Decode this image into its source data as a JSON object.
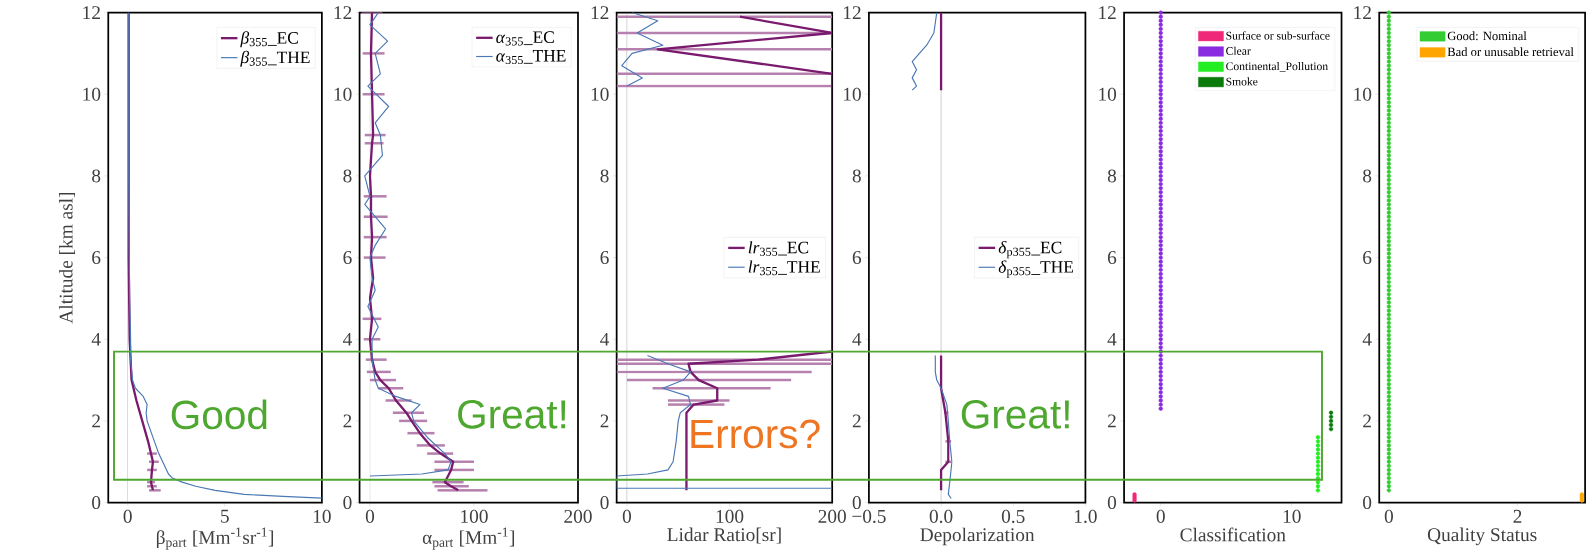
{
  "chart_data": [
    {
      "type": "line",
      "xlabel": "β$_{part}$ [Mm$^{-1}$sr$^{-1}$]",
      "ylabel": "Altitude [km asl]",
      "xlim": [
        -1,
        10
      ],
      "ylim": [
        0,
        12
      ],
      "xticks": [
        0,
        5,
        10
      ],
      "yticks": [
        0,
        2,
        4,
        6,
        8,
        10,
        12
      ],
      "legend": "top right",
      "ref_lines": [
        {
          "axis": "x",
          "value": 0,
          "color": "#999999"
        }
      ],
      "annotations": [
        "Good"
      ],
      "series": [
        {
          "name": "*β*$_{355}$_EC",
          "color": "#7a1a6e",
          "values": [
            12,
            10,
            8,
            6,
            4,
            3.5,
            3,
            2.5,
            2,
            1.5,
            1.2,
            1,
            0.8,
            0.5,
            0.4,
            0.3
          ],
          "x": [
            0.05,
            0.05,
            0.05,
            0.05,
            0.1,
            0.15,
            0.2,
            0.45,
            0.75,
            1.05,
            1.2,
            1.3,
            1.25,
            1.2,
            1.25,
            1.3
          ],
          "xerrors": [
            null,
            null,
            null,
            null,
            null,
            null,
            null,
            null,
            null,
            null,
            [
              1.0,
              1.5
            ],
            [
              1.1,
              1.6
            ],
            [
              1.0,
              1.5
            ],
            [
              1.0,
              1.4
            ],
            [
              1.0,
              1.5
            ],
            [
              1.1,
              1.7
            ]
          ]
        },
        {
          "name": "*β*$_{355}$_THE",
          "color": "#4a78b5",
          "values": [
            12,
            8,
            5,
            4,
            3.5,
            3,
            2.8,
            2.6,
            2.4,
            2.2,
            2,
            1.6,
            1.2,
            0.9,
            0.7,
            0.6,
            0.5,
            0.4,
            0.3,
            0.2,
            0.15,
            0.11
          ],
          "x": [
            0.05,
            0.05,
            0.1,
            0.15,
            0.15,
            0.25,
            0.4,
            0.8,
            1.0,
            0.95,
            1.0,
            1.3,
            1.6,
            1.9,
            2.1,
            2.3,
            2.8,
            3.5,
            4.5,
            6,
            8,
            10
          ]
        }
      ]
    },
    {
      "type": "line",
      "xlabel": "α$_{part}$ [Mm$^{-1}$]",
      "xlim": [
        -10,
        200
      ],
      "ylim": [
        0,
        12
      ],
      "xticks": [
        0,
        100,
        200
      ],
      "yticks": [
        0,
        2,
        4,
        6,
        8,
        10,
        12
      ],
      "legend": "top right",
      "ref_lines": [
        {
          "axis": "x",
          "value": 0,
          "color": "#999999"
        }
      ],
      "annotations": [
        "Great!"
      ],
      "series": [
        {
          "name": "*α*$_{355}$_EC",
          "color": "#7a1a6e",
          "values": [
            12,
            11,
            10,
            9,
            8.8,
            8,
            7.5,
            7,
            6.5,
            6,
            5.5,
            5,
            4.5,
            4,
            3.5,
            3.2,
            3,
            2.8,
            2.5,
            2.2,
            2,
            1.7,
            1.4,
            1.2,
            1,
            0.8,
            0.5,
            0.4,
            0.3
          ],
          "x": [
            2,
            1,
            2,
            3,
            2,
            0,
            1,
            1,
            2,
            1,
            3,
            0,
            2,
            0,
            2,
            5,
            10,
            18,
            25,
            35,
            40,
            48,
            58,
            68,
            80,
            78,
            72,
            78,
            85
          ],
          "xerrors": [
            [
              -8,
              12
            ],
            [
              -7,
              14
            ],
            [
              -7,
              14
            ],
            [
              -5,
              15
            ],
            [
              -5,
              13
            ],
            null,
            [
              -6,
              16
            ],
            [
              -6,
              17
            ],
            [
              -6,
              16
            ],
            [
              -6,
              15
            ],
            null,
            null,
            [
              -7,
              11
            ],
            [
              -6,
              10
            ],
            [
              -4,
              16
            ],
            [
              -3,
              20
            ],
            [
              0,
              25
            ],
            [
              8,
              32
            ],
            [
              15,
              40
            ],
            [
              22,
              52
            ],
            [
              28,
              55
            ],
            [
              36,
              62
            ],
            [
              45,
              72
            ],
            [
              55,
              80
            ],
            [
              62,
              100
            ],
            [
              62,
              100
            ],
            [
              60,
              90
            ],
            [
              62,
              95
            ],
            [
              65,
              113
            ]
          ]
        },
        {
          "name": "*α*$_{355}$_THE",
          "color": "#4a78b5",
          "values": [
            12,
            11.7,
            11.3,
            11,
            10.5,
            10.2,
            9.7,
            9.3,
            9,
            8.5,
            8,
            7.5,
            7.3,
            7,
            6.7,
            6.3,
            6,
            5.5,
            5.2,
            4.8,
            4.3,
            4,
            3.5,
            3,
            2.8,
            2.6,
            2.4,
            2.2,
            2,
            1.6,
            1.2,
            1,
            0.8,
            0.7,
            0.65
          ],
          "x": [
            8,
            0,
            17,
            5,
            10,
            -2,
            18,
            5,
            10,
            12,
            -5,
            0,
            -5,
            5,
            15,
            5,
            0,
            2,
            5,
            -2,
            8,
            2,
            2,
            5,
            8,
            25,
            48,
            40,
            42,
            55,
            72,
            78,
            75,
            50,
            0
          ]
        }
      ]
    },
    {
      "type": "line",
      "xlabel": "Lidar Ratio[sr]",
      "xlim": [
        -10,
        200
      ],
      "ylim": [
        0,
        12
      ],
      "xticks": [
        0,
        100,
        200
      ],
      "yticks": [
        0,
        2,
        4,
        6,
        8,
        10,
        12
      ],
      "legend": "right",
      "ref_lines": [
        {
          "axis": "x",
          "value": 0,
          "color": "#999999"
        }
      ],
      "annotations": [
        "Errors?"
      ],
      "series": [
        {
          "name": "*lr*$_{355}$_EC",
          "color": "#7a1a6e",
          "values": [
            11.9,
            11.5,
            11.1,
            10.5,
            10.2,
            6,
            3.7,
            3.5,
            3.4,
            3.2,
            3,
            2.8,
            2.5,
            2.4,
            2.2,
            1,
            0.3
          ],
          "x": [
            110,
            200,
            30,
            200,
            200,
            200,
            200,
            128,
            60,
            62,
            70,
            88,
            88,
            65,
            58,
            58,
            58
          ],
          "xerrors": [
            [
              -10,
              200
            ],
            [
              -10,
              200
            ],
            [
              -10,
              200
            ],
            [
              -10,
              200
            ],
            [
              -10,
              200
            ],
            null,
            null,
            [
              -10,
              200
            ],
            [
              -10,
              200
            ],
            [
              -10,
              180
            ],
            [
              0,
              160
            ],
            [
              25,
              140
            ],
            [
              40,
              100
            ],
            [
              40,
              95
            ],
            null,
            null,
            null
          ]
        },
        {
          "name": "*lr*$_{355}$_THE",
          "color": "#4a78b5",
          "values": [
            12,
            11.8,
            11.5,
            11.2,
            11,
            10.7,
            10.4,
            10.2,
            null,
            3.6,
            3.4,
            3.2,
            3,
            2.8,
            2.6,
            2.4,
            2.2,
            2,
            1.5,
            1,
            0.8,
            0.7,
            0.65,
            0.35,
            0.35
          ],
          "x": [
            5,
            30,
            10,
            35,
            5,
            -5,
            15,
            0,
            null,
            20,
            40,
            62,
            55,
            35,
            60,
            62,
            52,
            50,
            48,
            45,
            40,
            20,
            -10,
            -10,
            200
          ]
        }
      ]
    },
    {
      "type": "line",
      "xlabel": "Depolarization",
      "xlim": [
        -0.5,
        1.0
      ],
      "ylim": [
        0,
        12
      ],
      "xticks": [
        {
          "value": -0.5,
          "label": "−0.5"
        },
        {
          "value": 0,
          "label": "0.0"
        },
        0.5,
        {
          "value": 1.0,
          "label": "1.0"
        }
      ],
      "yticks": [
        0,
        2,
        4,
        6,
        8,
        10,
        12
      ],
      "legend": "right",
      "ref_lines": [
        {
          "axis": "x",
          "value": 0,
          "color": "#999999"
        }
      ],
      "annotations": [
        "Great!"
      ],
      "series": [
        {
          "name": "*δ*$_{p355}$_EC",
          "color": "#7a1a6e",
          "values": [
            12,
            10.1,
            null,
            3.6,
            2.8,
            2.2,
            1.5,
            1,
            0.8,
            0.3
          ],
          "x": [
            0,
            0,
            null,
            0,
            0,
            0.03,
            0.05,
            0.05,
            0,
            0
          ],
          "xerrors": [
            null,
            null,
            null,
            null,
            null,
            [
              0.02,
              0.05
            ],
            [
              0.03,
              0.07
            ],
            [
              0.03,
              0.07
            ],
            null,
            null
          ]
        },
        {
          "name": "*δ*$_{p355}$_THE",
          "color": "#4a78b5",
          "values": [
            12,
            11.5,
            11.2,
            11,
            10.8,
            10.6,
            10.4,
            10.2,
            10.1,
            null,
            3.6,
            3.2,
            3,
            2.8,
            2.4,
            2,
            1.5,
            1,
            0.5,
            0.2,
            0.1
          ],
          "x": [
            -0.03,
            -0.05,
            -0.1,
            -0.15,
            -0.2,
            -0.17,
            -0.2,
            -0.17,
            -0.2,
            null,
            -0.04,
            -0.04,
            -0.03,
            0,
            0.04,
            0.05,
            0.06,
            0.075,
            0.06,
            0.05,
            0.07
          ]
        }
      ]
    },
    {
      "type": "scatter",
      "xlabel": "Classification",
      "xlim": [
        -2.8,
        13.8
      ],
      "ylim": [
        0,
        12
      ],
      "xticks": [
        0,
        10
      ],
      "yticks": [
        0,
        2,
        4,
        6,
        8,
        10,
        12
      ],
      "legend": "top right",
      "marker": "circle",
      "series": [
        {
          "name": "Surface or sub-surface",
          "color": "#f0287a",
          "values": [
            0.05,
            0.1,
            0.15,
            0.2
          ],
          "x": [
            -2,
            -2,
            -2,
            -2
          ]
        },
        {
          "name": "Clear",
          "color": "#8a2be2",
          "values": [
            2.3,
            2.4,
            2.5,
            2.6,
            2.7,
            2.8,
            2.9,
            3.0,
            3.1,
            3.2,
            3.3,
            3.4,
            3.5,
            3.6,
            3.7,
            3.8,
            3.9,
            4.0,
            4.1,
            4.2,
            4.3,
            4.4,
            4.5,
            4.6,
            4.7,
            4.8,
            4.9,
            5.0,
            5.1,
            5.2,
            5.3,
            5.4,
            5.5,
            5.6,
            5.7,
            5.8,
            5.9,
            6.0,
            6.1,
            6.2,
            6.3,
            6.4,
            6.5,
            6.6,
            6.7,
            6.8,
            6.9,
            7.0,
            7.1,
            7.2,
            7.3,
            7.4,
            7.5,
            7.6,
            7.7,
            7.8,
            7.9,
            8.0,
            8.1,
            8.2,
            8.3,
            8.4,
            8.5,
            8.6,
            8.7,
            8.8,
            8.9,
            9.0,
            9.1,
            9.2,
            9.3,
            9.4,
            9.5,
            9.6,
            9.7,
            9.8,
            9.9,
            10.0,
            10.1,
            10.2,
            10.3,
            10.4,
            10.5,
            10.6,
            10.7,
            10.8,
            10.9,
            11.0,
            11.1,
            11.2,
            11.3,
            11.4,
            11.5,
            11.6,
            11.7,
            11.8,
            11.9,
            12.0
          ],
          "x": [
            0,
            0,
            0,
            0,
            0,
            0,
            0,
            0,
            0,
            0,
            0,
            0,
            0,
            0,
            0,
            0,
            0,
            0,
            0,
            0,
            0,
            0,
            0,
            0,
            0,
            0,
            0,
            0,
            0,
            0,
            0,
            0,
            0,
            0,
            0,
            0,
            0,
            0,
            0,
            0,
            0,
            0,
            0,
            0,
            0,
            0,
            0,
            0,
            0,
            0,
            0,
            0,
            0,
            0,
            0,
            0,
            0,
            0,
            0,
            0,
            0,
            0,
            0,
            0,
            0,
            0,
            0,
            0,
            0,
            0,
            0,
            0,
            0,
            0,
            0,
            0,
            0,
            0,
            0,
            0,
            0,
            0,
            0,
            0,
            0,
            0,
            0,
            0,
            0,
            0,
            0,
            0,
            0,
            0,
            0,
            0,
            0,
            0
          ]
        },
        {
          "name": "Continental_Pollution",
          "color": "#22ee22",
          "values": [
            0.3,
            0.4,
            0.5,
            0.6,
            0.7,
            0.8,
            0.9,
            1.0,
            1.1,
            1.2,
            1.3,
            1.4,
            1.5,
            1.6
          ],
          "x": [
            12,
            12,
            12,
            12,
            12,
            12,
            12,
            12,
            12,
            12,
            12,
            12,
            12,
            12
          ]
        },
        {
          "name": "Smoke",
          "color": "#0a7a0a",
          "values": [
            1.8,
            1.9,
            2.0,
            2.1,
            2.2
          ],
          "x": [
            13,
            13,
            13,
            13,
            13
          ]
        }
      ]
    },
    {
      "type": "scatter",
      "xlabel": "Quality Status",
      "xlim": [
        -0.15,
        3.05
      ],
      "ylim": [
        0,
        12
      ],
      "xticks": [
        0,
        2
      ],
      "yticks": [
        0,
        2,
        4,
        6,
        8,
        10,
        12
      ],
      "legend": "top right",
      "marker": "circle",
      "series": [
        {
          "name": "Good: Nominal",
          "color": "#33cc33",
          "values": [
            0.3,
            0.4,
            0.5,
            0.6,
            0.7,
            0.8,
            0.9,
            1.0,
            1.1,
            1.2,
            1.3,
            1.4,
            1.5,
            1.6,
            1.7,
            1.8,
            1.9,
            2.0,
            2.1,
            2.2,
            2.3,
            2.4,
            2.5,
            2.6,
            2.7,
            2.8,
            2.9,
            3.0,
            3.1,
            3.2,
            3.3,
            3.4,
            3.5,
            3.6,
            3.7,
            3.8,
            3.9,
            4.0,
            4.1,
            4.2,
            4.3,
            4.4,
            4.5,
            4.6,
            4.7,
            4.8,
            4.9,
            5.0,
            5.1,
            5.2,
            5.3,
            5.4,
            5.5,
            5.6,
            5.7,
            5.8,
            5.9,
            6.0,
            6.1,
            6.2,
            6.3,
            6.4,
            6.5,
            6.6,
            6.7,
            6.8,
            6.9,
            7.0,
            7.1,
            7.2,
            7.3,
            7.4,
            7.5,
            7.6,
            7.7,
            7.8,
            7.9,
            8.0,
            8.1,
            8.2,
            8.3,
            8.4,
            8.5,
            8.6,
            8.7,
            8.8,
            8.9,
            9.0,
            9.1,
            9.2,
            9.3,
            9.4,
            9.5,
            9.6,
            9.7,
            9.8,
            9.9,
            10.0,
            10.1,
            10.2,
            10.3,
            10.4,
            10.5,
            10.6,
            10.7,
            10.8,
            10.9,
            11.0,
            11.1,
            11.2,
            11.3,
            11.4,
            11.5,
            11.6,
            11.7,
            11.8,
            11.9,
            12.0
          ],
          "x": [
            0,
            0,
            0,
            0,
            0,
            0,
            0,
            0,
            0,
            0,
            0,
            0,
            0,
            0,
            0,
            0,
            0,
            0,
            0,
            0,
            0,
            0,
            0,
            0,
            0,
            0,
            0,
            0,
            0,
            0,
            0,
            0,
            0,
            0,
            0,
            0,
            0,
            0,
            0,
            0,
            0,
            0,
            0,
            0,
            0,
            0,
            0,
            0,
            0,
            0,
            0,
            0,
            0,
            0,
            0,
            0,
            0,
            0,
            0,
            0,
            0,
            0,
            0,
            0,
            0,
            0,
            0,
            0,
            0,
            0,
            0,
            0,
            0,
            0,
            0,
            0,
            0,
            0,
            0,
            0,
            0,
            0,
            0,
            0,
            0,
            0,
            0,
            0,
            0,
            0,
            0,
            0,
            0,
            0,
            0,
            0,
            0,
            0,
            0,
            0,
            0,
            0,
            0,
            0,
            0,
            0,
            0,
            0,
            0,
            0,
            0,
            0,
            0,
            0,
            0,
            0,
            0,
            0
          ]
        },
        {
          "name": "Bad or unusable retrieval",
          "color": "#ffa500",
          "values": [
            0.05,
            0.1,
            0.15,
            0.2
          ],
          "x": [
            3,
            3,
            3,
            3
          ]
        }
      ]
    }
  ]
}
